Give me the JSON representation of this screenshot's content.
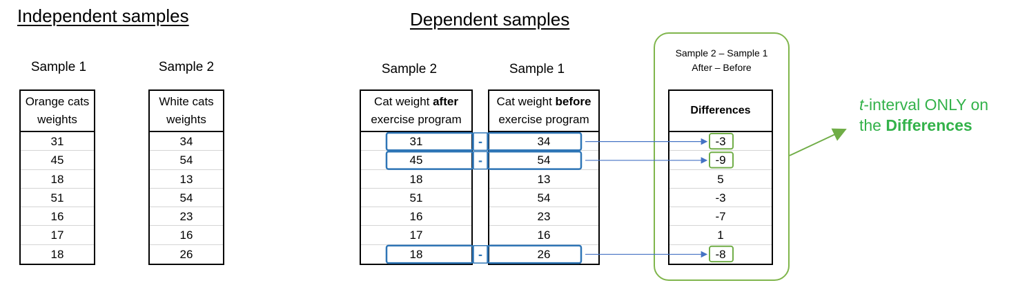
{
  "headings": {
    "independent": "Independent samples",
    "dependent": "Dependent samples"
  },
  "independent": {
    "sample1": {
      "label": "Sample 1",
      "header_lines": [
        "Orange cats",
        "weights"
      ],
      "values": [
        "31",
        "45",
        "18",
        "51",
        "16",
        "17",
        "18"
      ]
    },
    "sample2": {
      "label": "Sample 2",
      "header_lines": [
        "White cats",
        "weights"
      ],
      "values": [
        "34",
        "54",
        "13",
        "54",
        "23",
        "16",
        "26"
      ]
    }
  },
  "dependent": {
    "sample2": {
      "label": "Sample 2",
      "header_line1_pre": "Cat weight ",
      "header_line1_bold": "after",
      "header_line2": "exercise program",
      "values": [
        "31",
        "45",
        "18",
        "51",
        "16",
        "17",
        "18"
      ]
    },
    "sample1": {
      "label": "Sample 1",
      "header_line1_pre": "Cat weight ",
      "header_line1_bold": "before",
      "header_line2": "exercise program",
      "values": [
        "34",
        "54",
        "13",
        "54",
        "23",
        "16",
        "26"
      ]
    },
    "minus_sign": "-",
    "highlighted_rows": [
      0,
      1,
      6
    ]
  },
  "differences": {
    "caption_line1": "Sample 2 – Sample 1",
    "caption_line2": "After – Before",
    "header": "Differences",
    "values": [
      "-3",
      "-9",
      "5",
      "-3",
      "-7",
      "1",
      "-8"
    ]
  },
  "note": {
    "italic": "t",
    "line1_rest": "-interval ONLY on",
    "line2_pre": "the ",
    "line2_bold": "Differences"
  },
  "colors": {
    "blue": "#2e75b6",
    "arrow_blue": "#4472c4",
    "green": "#70ad47",
    "note_green": "#33b24a"
  }
}
